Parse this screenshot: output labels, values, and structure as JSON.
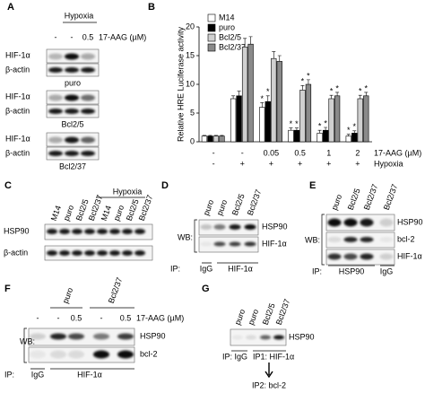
{
  "panel_a": {
    "letter": "A",
    "condition": "Hypoxia",
    "treatments": [
      "-",
      "-",
      "0.5"
    ],
    "treatment_unit": "17-AAG (µM)",
    "blots": [
      {
        "proteins": [
          "HIF-1α",
          "β-actin"
        ],
        "cell_line": "puro"
      },
      {
        "proteins": [
          "HIF-1α",
          "β-actin"
        ],
        "cell_line": "Bcl2/5"
      },
      {
        "proteins": [
          "HIF-1α",
          "β-actin"
        ],
        "cell_line": "Bcl2/37"
      }
    ]
  },
  "panel_b": {
    "letter": "B"
  },
  "chart_data": {
    "type": "bar",
    "y_label": "Relative HRE Luciferase activity",
    "categories": [
      "-",
      "-",
      "0.05",
      "0.5",
      "1",
      "2"
    ],
    "category_label": "17-AAG (µM)",
    "hypoxia": [
      "-",
      "+",
      "+",
      "+",
      "+",
      "+"
    ],
    "hypoxia_label": "Hypoxia",
    "ylim": [
      0,
      20
    ],
    "yticks": [
      0,
      5,
      10,
      15,
      20
    ],
    "series": [
      {
        "name": "M14",
        "color": "#ffffff",
        "values": [
          1,
          7.5,
          6,
          2,
          1.5,
          1
        ],
        "errors": [
          0.1,
          0.5,
          0.8,
          0.4,
          0.5,
          0.3
        ],
        "significance": [
          null,
          null,
          "*",
          "*",
          "*",
          "*"
        ]
      },
      {
        "name": "puro",
        "color": "#000000",
        "values": [
          1,
          8,
          7,
          2,
          2,
          1.5
        ],
        "errors": [
          0.1,
          0.8,
          1,
          0.4,
          0.5,
          0.4
        ],
        "significance": [
          null,
          null,
          "*",
          "*",
          "*",
          "*"
        ]
      },
      {
        "name": "Bcl2/5",
        "color": "#d0d0d0",
        "values": [
          1,
          16.5,
          14.5,
          9,
          7.5,
          7.5
        ],
        "errors": [
          0.1,
          1.5,
          1.2,
          0.8,
          0.6,
          0.6
        ],
        "significance": [
          null,
          null,
          null,
          "*",
          "*",
          "*"
        ]
      },
      {
        "name": "Bcl2/37",
        "color": "#8a8a8a",
        "values": [
          1,
          17,
          14,
          10,
          8,
          8
        ],
        "errors": [
          0.1,
          1.3,
          1,
          0.8,
          0.6,
          0.6
        ],
        "significance": [
          null,
          null,
          null,
          "*",
          "*",
          "*"
        ]
      }
    ]
  },
  "panel_c": {
    "letter": "C",
    "lanes": [
      "M14",
      "puro",
      "Bcl2/5",
      "Bcl2/37",
      "M14",
      "puro",
      "Bcl2/5",
      "Bcl2/37"
    ],
    "condition": "Hypoxia",
    "proteins": [
      "HSP90",
      "β-actin"
    ]
  },
  "panel_d": {
    "letter": "D",
    "lanes": [
      "puro",
      "puro",
      "Bcl2/5",
      "Bcl2/37"
    ],
    "wb": "WB:",
    "proteins": [
      "HSP90",
      "HIF-1α"
    ],
    "ip": "IP:",
    "ip_groups": [
      "IgG",
      "HIF-1α"
    ]
  },
  "panel_e": {
    "letter": "E",
    "lanes": [
      "puro",
      "Bcl2/5",
      "Bcl2/37",
      "Bcl2/37"
    ],
    "wb": "WB:",
    "proteins": [
      "HSP90",
      "bcl-2",
      "HIF-1α"
    ],
    "ip": "IP:",
    "ip_groups": [
      "HSP90",
      "IgG"
    ]
  },
  "panel_f": {
    "letter": "F",
    "cell_lines": [
      "puro",
      "Bcl2/37"
    ],
    "treatments": [
      "-",
      "-",
      "0.5",
      "-",
      "0.5"
    ],
    "treatment_unit": "17-AAG (µM)",
    "wb": "WB:",
    "proteins": [
      "HSP90",
      "bcl-2"
    ],
    "ip": "IP:",
    "ip_groups": [
      "IgG",
      "HIF-1α"
    ]
  },
  "panel_g": {
    "letter": "G",
    "lanes": [
      "puro",
      "puro",
      "Bcl2/5",
      "Bcl2/37"
    ],
    "protein": "HSP90",
    "ip": "IP: IgG",
    "ip1": "IP1: HIF-1α",
    "ip2": "IP2: bcl-2"
  }
}
